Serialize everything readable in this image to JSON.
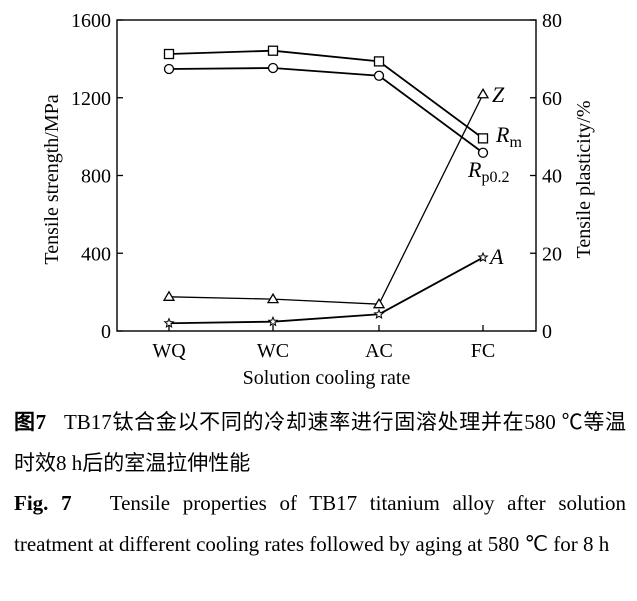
{
  "chart_data": {
    "type": "line",
    "categories": [
      "WQ",
      "WC",
      "AC",
      "FC"
    ],
    "xlabel": "Solution cooling rate",
    "ylabel": "Tensile strength/MPa",
    "y2label": "Tensile plasticity/%",
    "ylim": [
      0,
      1600
    ],
    "y2lim": [
      0,
      80
    ],
    "yticks": [
      0,
      400,
      800,
      1200,
      1600
    ],
    "y2ticks": [
      0,
      20,
      40,
      60,
      80
    ],
    "grid": false,
    "series": [
      {
        "name": "Rm",
        "sub": "m",
        "axis": "left",
        "marker": "square",
        "values": [
          1425,
          1442,
          1387,
          991
        ]
      },
      {
        "name": "Rp0.2",
        "sub": "p0.2",
        "axis": "left",
        "marker": "circle",
        "values": [
          1348,
          1353,
          1313,
          917
        ]
      },
      {
        "name": "Z",
        "sub": "",
        "axis": "right",
        "marker": "triangle",
        "values": [
          8.8,
          8.2,
          6.9,
          60.9
        ]
      },
      {
        "name": "A",
        "sub": "",
        "axis": "right",
        "marker": "star",
        "values": [
          2.0,
          2.4,
          4.3,
          18.9
        ]
      }
    ]
  },
  "caption": {
    "cn_label": "图7",
    "cn_text": "TB17钛合金以不同的冷却速率进行固溶处理并在580 ℃等温时效8 h后的室温拉伸性能",
    "en_label": "Fig. 7",
    "en_text": "Tensile properties of TB17 titanium alloy after solution treatment at different cooling rates followed by aging at 580 ℃ for 8 h"
  }
}
